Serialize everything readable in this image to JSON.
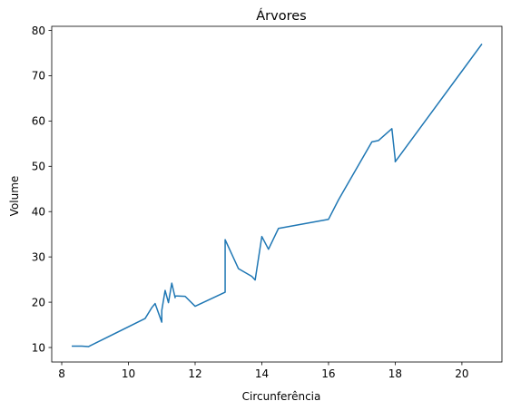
{
  "chart_data": {
    "type": "line",
    "title": "Árvores",
    "xlabel": "Circunferência",
    "ylabel": "Volume",
    "xlim": [
      7.7,
      21.2
    ],
    "ylim": [
      6.8,
      80.9
    ],
    "xticks": [
      8,
      10,
      12,
      14,
      16,
      18,
      20
    ],
    "yticks": [
      10,
      20,
      30,
      40,
      50,
      60,
      70,
      80
    ],
    "grid": false,
    "series": [
      {
        "color": "#1f77b4",
        "x": [
          8.3,
          8.6,
          8.8,
          10.5,
          10.7,
          10.8,
          11.0,
          11.0,
          11.1,
          11.2,
          11.3,
          11.4,
          11.4,
          11.7,
          12.0,
          12.9,
          12.9,
          13.3,
          13.7,
          13.8,
          14.0,
          14.2,
          14.5,
          16.0,
          16.3,
          17.3,
          17.5,
          17.9,
          18.0,
          18.0,
          20.6
        ],
        "y": [
          10.3,
          10.3,
          10.2,
          16.4,
          18.8,
          19.7,
          15.6,
          18.2,
          22.6,
          19.9,
          24.2,
          21.0,
          21.4,
          21.3,
          19.1,
          22.2,
          33.8,
          27.4,
          25.7,
          24.9,
          34.5,
          31.7,
          36.3,
          38.3,
          42.6,
          55.4,
          55.7,
          58.3,
          51.5,
          51.0,
          77.0
        ]
      }
    ]
  }
}
